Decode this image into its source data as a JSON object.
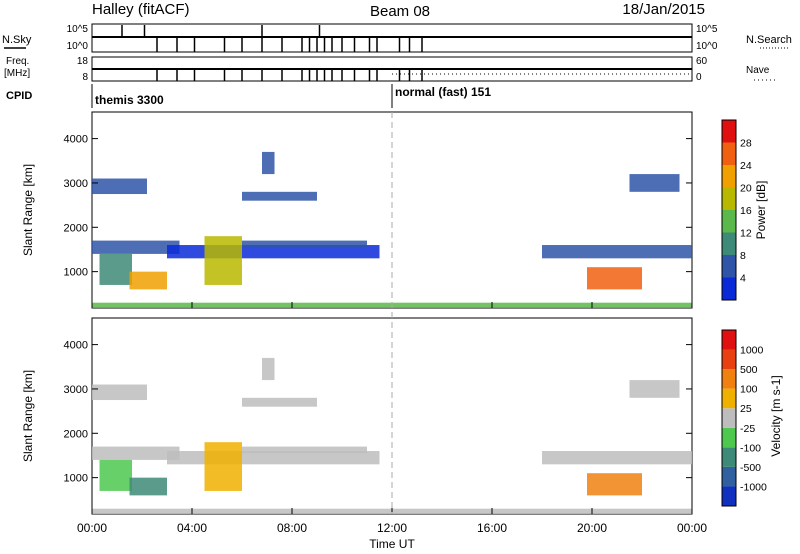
{
  "header": {
    "station": "Halley (fitACF)",
    "beam": "Beam 08",
    "date": "18/Jan/2015"
  },
  "status_panels": {
    "sky_label": "N.Sky",
    "sky_ticks": [
      "10^5",
      "10^0"
    ],
    "search_label": "N.Search",
    "search_ticks": [
      "10^5",
      "10^0"
    ],
    "freq_label": "Freq.",
    "freq_unit": "[MHz]",
    "freq_ticks": [
      "18",
      "8"
    ],
    "nave_label": "Nave",
    "nave_ticks": [
      "60",
      "0"
    ],
    "cpid_label": "CPID",
    "cpid_modes": [
      {
        "name": "themis 3300",
        "start_hour": 0
      },
      {
        "name": "normal (fast) 151",
        "start_hour": 12
      }
    ],
    "dips_hours": [
      2.6,
      3.4,
      4.1,
      5.3,
      6.0,
      6.8,
      7.6,
      8.4,
      8.7,
      9.0,
      9.3,
      9.6,
      10.0,
      10.5,
      11.1,
      11.4,
      12.3,
      12.7,
      13.2
    ],
    "spikes_hours": [
      1.2,
      2.1,
      6.8,
      9.1
    ]
  },
  "x_axis": {
    "label": "Time UT",
    "ticks": [
      "00:00",
      "04:00",
      "08:00",
      "12:00",
      "16:00",
      "20:00",
      "00:00"
    ],
    "range_hours": [
      0,
      24
    ]
  },
  "chart_data": [
    {
      "type": "heatmap",
      "name": "power",
      "ylabel": "Slant Range [km]",
      "yticks": [
        1000,
        2000,
        3000,
        4000
      ],
      "ylim": [
        180,
        4600
      ],
      "xlim_hours": [
        0,
        24
      ],
      "colorbar": {
        "label": "Power [dB]",
        "ticks": [
          "4",
          "8",
          "12",
          "16",
          "20",
          "24",
          "28"
        ],
        "colors": [
          "#0a2ad8",
          "#2e55a8",
          "#3e8a78",
          "#5bb84a",
          "#b8b800",
          "#f0a000",
          "#f06010",
          "#e01010"
        ]
      },
      "regions": [
        {
          "t0": 0.0,
          "t1": 2.2,
          "r0": 2750,
          "r1": 3100,
          "color": "#2e55a8"
        },
        {
          "t0": 0.0,
          "t1": 3.5,
          "r0": 1400,
          "r1": 1700,
          "color": "#2e55a8"
        },
        {
          "t0": 0.3,
          "t1": 1.6,
          "r0": 700,
          "r1": 1400,
          "color": "#3e8a78"
        },
        {
          "t0": 1.5,
          "t1": 3.0,
          "r0": 600,
          "r1": 1000,
          "color": "#f0a000"
        },
        {
          "t0": 3.0,
          "t1": 11.5,
          "r0": 1300,
          "r1": 1600,
          "color": "#0a2ad8"
        },
        {
          "t0": 4.5,
          "t1": 6.0,
          "r0": 700,
          "r1": 1800,
          "color": "#b8b800"
        },
        {
          "t0": 6.0,
          "t1": 11.0,
          "r0": 1550,
          "r1": 1700,
          "color": "#2e55a8"
        },
        {
          "t0": 6.0,
          "t1": 9.0,
          "r0": 2600,
          "r1": 2800,
          "color": "#2e55a8"
        },
        {
          "t0": 6.8,
          "t1": 7.3,
          "r0": 3200,
          "r1": 3700,
          "color": "#2e55a8"
        },
        {
          "t0": 18.0,
          "t1": 24.0,
          "r0": 1300,
          "r1": 1600,
          "color": "#2e55a8"
        },
        {
          "t0": 19.8,
          "t1": 22.0,
          "r0": 600,
          "r1": 1100,
          "color": "#f06010"
        },
        {
          "t0": 21.5,
          "t1": 23.5,
          "r0": 2800,
          "r1": 3200,
          "color": "#2e55a8"
        },
        {
          "t0": 0.0,
          "t1": 24.0,
          "r0": 180,
          "r1": 300,
          "color": "#5bb84a"
        }
      ]
    },
    {
      "type": "heatmap",
      "name": "velocity",
      "ylabel": "Slant Range [km]",
      "yticks": [
        1000,
        2000,
        3000,
        4000
      ],
      "ylim": [
        180,
        4600
      ],
      "xlim_hours": [
        0,
        24
      ],
      "colorbar": {
        "label": "Velocity [m s-1]",
        "ticks": [
          "1000",
          "500",
          "100",
          "25",
          "-25",
          "-100",
          "-500",
          "-1000"
        ],
        "colors": [
          "#1030c0",
          "#3060a0",
          "#3e8a78",
          "#4ec84e",
          "#bdbdbd",
          "#f0b000",
          "#f08010",
          "#e84010",
          "#e01010"
        ]
      },
      "regions": [
        {
          "t0": 0.0,
          "t1": 2.2,
          "r0": 2750,
          "r1": 3100,
          "color": "#bdbdbd"
        },
        {
          "t0": 0.0,
          "t1": 3.5,
          "r0": 1400,
          "r1": 1700,
          "color": "#bdbdbd"
        },
        {
          "t0": 0.3,
          "t1": 1.6,
          "r0": 700,
          "r1": 1400,
          "color": "#4ec84e"
        },
        {
          "t0": 1.5,
          "t1": 3.0,
          "r0": 600,
          "r1": 1000,
          "color": "#3e8a78"
        },
        {
          "t0": 3.0,
          "t1": 11.5,
          "r0": 1300,
          "r1": 1600,
          "color": "#bdbdbd"
        },
        {
          "t0": 4.5,
          "t1": 6.0,
          "r0": 700,
          "r1": 1800,
          "color": "#f0b000"
        },
        {
          "t0": 6.0,
          "t1": 11.0,
          "r0": 1550,
          "r1": 1700,
          "color": "#bdbdbd"
        },
        {
          "t0": 6.0,
          "t1": 9.0,
          "r0": 2600,
          "r1": 2800,
          "color": "#bdbdbd"
        },
        {
          "t0": 6.8,
          "t1": 7.3,
          "r0": 3200,
          "r1": 3700,
          "color": "#bdbdbd"
        },
        {
          "t0": 18.0,
          "t1": 24.0,
          "r0": 1300,
          "r1": 1600,
          "color": "#bdbdbd"
        },
        {
          "t0": 19.8,
          "t1": 22.0,
          "r0": 600,
          "r1": 1100,
          "color": "#f08010"
        },
        {
          "t0": 21.5,
          "t1": 23.5,
          "r0": 2800,
          "r1": 3200,
          "color": "#bdbdbd"
        },
        {
          "t0": 0.0,
          "t1": 24.0,
          "r0": 180,
          "r1": 300,
          "color": "#bdbdbd"
        }
      ]
    }
  ]
}
